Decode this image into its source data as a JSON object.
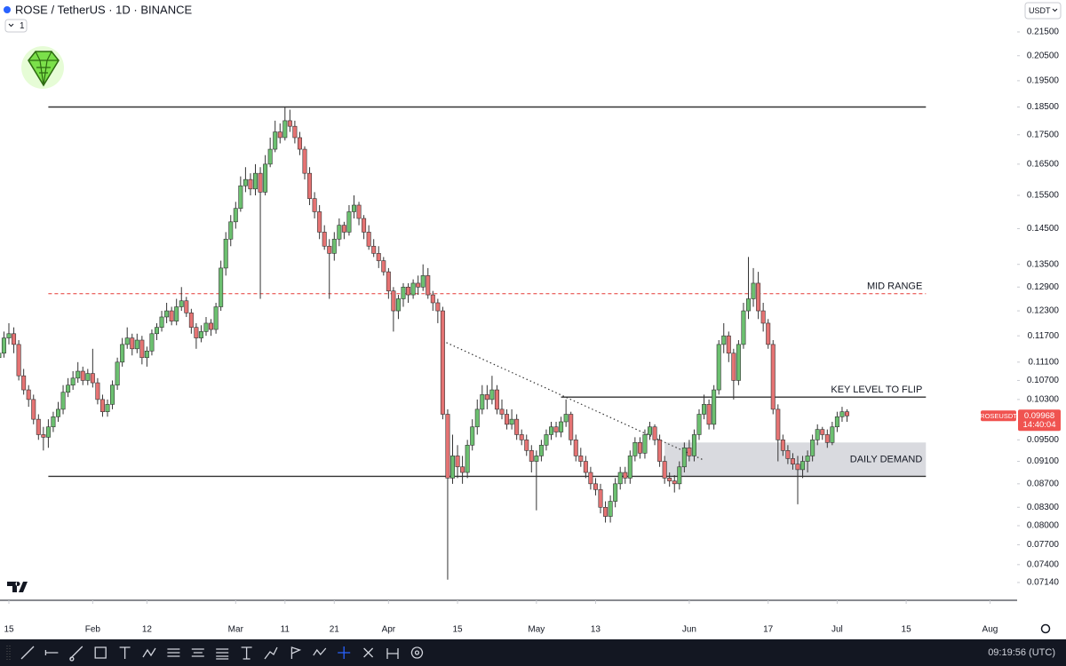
{
  "chart_data": {
    "type": "candlestick",
    "title": "ROSE / TetherUS · 1D · BINANCE",
    "interval_count": "1",
    "currency": "USDT",
    "symbol": "ROSEUSDT",
    "countdown": "14:40:04",
    "clock": "09:19:56 (UTC)",
    "log_scale": true,
    "grid": false,
    "up_color": "#6cc070",
    "down_color": "#e57373",
    "wick_color": "#333333",
    "ylim": [
      0.0689,
      0.2292
    ],
    "yticks": [
      {
        "value": 0.215,
        "label": "0.21500"
      },
      {
        "value": 0.205,
        "label": "0.20500"
      },
      {
        "value": 0.195,
        "label": "0.19500"
      },
      {
        "value": 0.185,
        "label": "0.18500"
      },
      {
        "value": 0.175,
        "label": "0.17500"
      },
      {
        "value": 0.165,
        "label": "0.16500"
      },
      {
        "value": 0.155,
        "label": "0.15500"
      },
      {
        "value": 0.145,
        "label": "0.14500"
      },
      {
        "value": 0.135,
        "label": "0.13500"
      },
      {
        "value": 0.129,
        "label": "0.12900"
      },
      {
        "value": 0.123,
        "label": "0.12300"
      },
      {
        "value": 0.117,
        "label": "0.11700"
      },
      {
        "value": 0.111,
        "label": "0.11100"
      },
      {
        "value": 0.107,
        "label": "0.10700"
      },
      {
        "value": 0.103,
        "label": "0.10300"
      },
      {
        "value": 0.095,
        "label": "0.09500"
      },
      {
        "value": 0.091,
        "label": "0.09100"
      },
      {
        "value": 0.087,
        "label": "0.08700"
      },
      {
        "value": 0.083,
        "label": "0.08300"
      },
      {
        "value": 0.08,
        "label": "0.08000"
      },
      {
        "value": 0.077,
        "label": "0.07700"
      },
      {
        "value": 0.074,
        "label": "0.07400"
      },
      {
        "value": 0.0714,
        "label": "0.07140"
      }
    ],
    "xticks": [
      {
        "value": "01-15",
        "label": "15"
      },
      {
        "value": "02-01",
        "label": "Feb"
      },
      {
        "value": "02-12",
        "label": "12"
      },
      {
        "value": "03-01",
        "label": "Mar"
      },
      {
        "value": "03-11",
        "label": "11"
      },
      {
        "value": "03-21",
        "label": "21"
      },
      {
        "value": "04-01",
        "label": "Apr"
      },
      {
        "value": "04-15",
        "label": "15"
      },
      {
        "value": "05-01",
        "label": "May"
      },
      {
        "value": "05-13",
        "label": "13"
      },
      {
        "value": "06-01",
        "label": "Jun"
      },
      {
        "value": "06-17",
        "label": "17"
      },
      {
        "value": "07-01",
        "label": "Jul"
      },
      {
        "value": "07-15",
        "label": "15"
      },
      {
        "value": "08-01",
        "label": "Aug"
      }
    ],
    "levels": [
      {
        "value": 0.185,
        "from": "01-23",
        "to": "07-19",
        "color": "#333333"
      },
      {
        "value": 0.1273,
        "from": "01-23",
        "to": "07-19",
        "color": "#e53935",
        "dashed": true,
        "label": "MID RANGE"
      },
      {
        "value": 0.1035,
        "from": "05-06",
        "to": "07-19",
        "color": "#333333",
        "label": "KEY LEVEL TO FLIP"
      },
      {
        "value": 0.0883,
        "from": "01-23",
        "to": "07-19",
        "color": "#333333"
      }
    ],
    "zone": {
      "label": "DAILY DEMAND",
      "low": 0.0883,
      "high": 0.0945,
      "from": "05-27",
      "to": "07-19",
      "color": "#d9dadf"
    },
    "trendline": {
      "from": "04-12",
      "from_value": 0.1158,
      "to": "06-04",
      "to_value": 0.0912
    },
    "x": [
      "01-13",
      "01-14",
      "01-15",
      "01-16",
      "01-17",
      "01-18",
      "01-19",
      "01-20",
      "01-21",
      "01-22",
      "01-23",
      "01-24",
      "01-25",
      "01-26",
      "01-27",
      "01-28",
      "01-29",
      "01-30",
      "01-31",
      "02-01",
      "02-02",
      "02-03",
      "02-04",
      "02-05",
      "02-06",
      "02-07",
      "02-08",
      "02-09",
      "02-10",
      "02-11",
      "02-12",
      "02-13",
      "02-14",
      "02-15",
      "02-16",
      "02-17",
      "02-18",
      "02-19",
      "02-20",
      "02-21",
      "02-22",
      "02-23",
      "02-24",
      "02-25",
      "02-26",
      "02-27",
      "02-28",
      "02-29",
      "03-01",
      "03-02",
      "03-03",
      "03-04",
      "03-05",
      "03-06",
      "03-07",
      "03-08",
      "03-09",
      "03-10",
      "03-11",
      "03-12",
      "03-13",
      "03-14",
      "03-15",
      "03-16",
      "03-17",
      "03-18",
      "03-19",
      "03-20",
      "03-21",
      "03-22",
      "03-23",
      "03-24",
      "03-25",
      "03-26",
      "03-27",
      "03-28",
      "03-29",
      "03-30",
      "03-31",
      "04-01",
      "04-02",
      "04-03",
      "04-04",
      "04-05",
      "04-06",
      "04-07",
      "04-08",
      "04-09",
      "04-10",
      "04-11",
      "04-12",
      "04-13",
      "04-14",
      "04-15",
      "04-16",
      "04-17",
      "04-18",
      "04-19",
      "04-20",
      "04-21",
      "04-22",
      "04-23",
      "04-24",
      "04-25",
      "04-26",
      "04-27",
      "04-28",
      "04-29",
      "04-30",
      "05-01",
      "05-02",
      "05-03",
      "05-04",
      "05-05",
      "05-06",
      "05-07",
      "05-08",
      "05-09",
      "05-10",
      "05-11",
      "05-12",
      "05-13",
      "05-14",
      "05-15",
      "05-16",
      "05-17",
      "05-18",
      "05-19",
      "05-20",
      "05-21",
      "05-22",
      "05-23",
      "05-24",
      "05-25",
      "05-26",
      "05-27",
      "05-28",
      "05-29",
      "05-30",
      "05-31",
      "06-01",
      "06-02",
      "06-03",
      "06-04",
      "06-05",
      "06-06",
      "06-07",
      "06-08",
      "06-09",
      "06-10",
      "06-11",
      "06-12",
      "06-13",
      "06-14",
      "06-15",
      "06-16",
      "06-17",
      "06-18",
      "06-19",
      "06-20",
      "06-21",
      "06-22",
      "06-23",
      "06-24",
      "06-25",
      "06-26",
      "06-27",
      "06-28",
      "06-29",
      "06-30",
      "07-01",
      "07-02",
      "07-03"
    ],
    "ohlc": [
      [
        0.112,
        0.115,
        0.11,
        0.113
      ],
      [
        0.113,
        0.118,
        0.112,
        0.1165
      ],
      [
        0.1165,
        0.12,
        0.115,
        0.1175
      ],
      [
        0.1175,
        0.119,
        0.113,
        0.115
      ],
      [
        0.115,
        0.116,
        0.107,
        0.108
      ],
      [
        0.108,
        0.1095,
        0.104,
        0.105
      ],
      [
        0.105,
        0.106,
        0.1015,
        0.103
      ],
      [
        0.103,
        0.104,
        0.098,
        0.099
      ],
      [
        0.099,
        0.1,
        0.095,
        0.096
      ],
      [
        0.096,
        0.0975,
        0.093,
        0.0955
      ],
      [
        0.0955,
        0.099,
        0.0935,
        0.0975
      ],
      [
        0.0975,
        0.1005,
        0.0965,
        0.0995
      ],
      [
        0.0995,
        0.1025,
        0.0985,
        0.101
      ],
      [
        0.101,
        0.106,
        0.1,
        0.1045
      ],
      [
        0.1045,
        0.1075,
        0.1035,
        0.106
      ],
      [
        0.106,
        0.109,
        0.105,
        0.1075
      ],
      [
        0.1075,
        0.111,
        0.1065,
        0.109
      ],
      [
        0.109,
        0.11,
        0.106,
        0.107
      ],
      [
        0.107,
        0.1095,
        0.106,
        0.1085
      ],
      [
        0.1085,
        0.114,
        0.1055,
        0.1065
      ],
      [
        0.1065,
        0.1075,
        0.102,
        0.103
      ],
      [
        0.103,
        0.104,
        0.0995,
        0.1005
      ],
      [
        0.1005,
        0.103,
        0.0995,
        0.102
      ],
      [
        0.102,
        0.107,
        0.101,
        0.106
      ],
      [
        0.106,
        0.112,
        0.105,
        0.111
      ],
      [
        0.111,
        0.1165,
        0.11,
        0.115
      ],
      [
        0.115,
        0.119,
        0.114,
        0.1165
      ],
      [
        0.1165,
        0.1175,
        0.1125,
        0.114
      ],
      [
        0.114,
        0.1175,
        0.113,
        0.116
      ],
      [
        0.116,
        0.117,
        0.1105,
        0.112
      ],
      [
        0.112,
        0.1145,
        0.11,
        0.1135
      ],
      [
        0.1135,
        0.1185,
        0.1125,
        0.1175
      ],
      [
        0.1175,
        0.12,
        0.116,
        0.119
      ],
      [
        0.119,
        0.123,
        0.118,
        0.1215
      ],
      [
        0.1215,
        0.125,
        0.12,
        0.123
      ],
      [
        0.123,
        0.124,
        0.1195,
        0.1205
      ],
      [
        0.1205,
        0.126,
        0.1195,
        0.124
      ],
      [
        0.124,
        0.129,
        0.123,
        0.1255
      ],
      [
        0.1255,
        0.1265,
        0.1215,
        0.1225
      ],
      [
        0.1225,
        0.1235,
        0.1175,
        0.119
      ],
      [
        0.119,
        0.12,
        0.114,
        0.1165
      ],
      [
        0.1165,
        0.1195,
        0.1155,
        0.118
      ],
      [
        0.118,
        0.1215,
        0.117,
        0.12
      ],
      [
        0.12,
        0.121,
        0.117,
        0.1185
      ],
      [
        0.1185,
        0.125,
        0.1175,
        0.124
      ],
      [
        0.124,
        0.136,
        0.123,
        0.134
      ],
      [
        0.134,
        0.144,
        0.132,
        0.142
      ],
      [
        0.142,
        0.149,
        0.14,
        0.147
      ],
      [
        0.147,
        0.153,
        0.145,
        0.151
      ],
      [
        0.151,
        0.161,
        0.15,
        0.158
      ],
      [
        0.158,
        0.164,
        0.156,
        0.16
      ],
      [
        0.16,
        0.162,
        0.155,
        0.157
      ],
      [
        0.157,
        0.165,
        0.155,
        0.162
      ],
      [
        0.162,
        0.164,
        0.126,
        0.156
      ],
      [
        0.156,
        0.168,
        0.155,
        0.165
      ],
      [
        0.165,
        0.174,
        0.164,
        0.17
      ],
      [
        0.17,
        0.18,
        0.169,
        0.176
      ],
      [
        0.176,
        0.179,
        0.172,
        0.174
      ],
      [
        0.174,
        0.185,
        0.173,
        0.18
      ],
      [
        0.18,
        0.184,
        0.176,
        0.178
      ],
      [
        0.178,
        0.18,
        0.172,
        0.174
      ],
      [
        0.174,
        0.176,
        0.168,
        0.17
      ],
      [
        0.17,
        0.171,
        0.16,
        0.162
      ],
      [
        0.162,
        0.164,
        0.152,
        0.154
      ],
      [
        0.154,
        0.156,
        0.148,
        0.15
      ],
      [
        0.15,
        0.152,
        0.142,
        0.144
      ],
      [
        0.144,
        0.146,
        0.139,
        0.14
      ],
      [
        0.14,
        0.142,
        0.126,
        0.138
      ],
      [
        0.138,
        0.144,
        0.136,
        0.142
      ],
      [
        0.142,
        0.148,
        0.14,
        0.146
      ],
      [
        0.146,
        0.147,
        0.142,
        0.144
      ],
      [
        0.144,
        0.152,
        0.143,
        0.15
      ],
      [
        0.15,
        0.155,
        0.148,
        0.152
      ],
      [
        0.152,
        0.153,
        0.146,
        0.148
      ],
      [
        0.148,
        0.149,
        0.142,
        0.144
      ],
      [
        0.144,
        0.146,
        0.139,
        0.14
      ],
      [
        0.14,
        0.142,
        0.137,
        0.138
      ],
      [
        0.138,
        0.14,
        0.134,
        0.136
      ],
      [
        0.136,
        0.137,
        0.132,
        0.133
      ],
      [
        0.133,
        0.134,
        0.126,
        0.128
      ],
      [
        0.128,
        0.129,
        0.118,
        0.123
      ],
      [
        0.123,
        0.127,
        0.121,
        0.126
      ],
      [
        0.126,
        0.13,
        0.124,
        0.129
      ],
      [
        0.129,
        0.13,
        0.125,
        0.127
      ],
      [
        0.127,
        0.131,
        0.126,
        0.13
      ],
      [
        0.13,
        0.132,
        0.127,
        0.129
      ],
      [
        0.129,
        0.135,
        0.128,
        0.132
      ],
      [
        0.132,
        0.134,
        0.126,
        0.127
      ],
      [
        0.127,
        0.128,
        0.123,
        0.125
      ],
      [
        0.125,
        0.126,
        0.12,
        0.123
      ],
      [
        0.123,
        0.124,
        0.099,
        0.1
      ],
      [
        0.1,
        0.101,
        0.0718,
        0.088
      ],
      [
        0.088,
        0.096,
        0.087,
        0.092
      ],
      [
        0.092,
        0.094,
        0.088,
        0.09
      ],
      [
        0.09,
        0.092,
        0.087,
        0.089
      ],
      [
        0.089,
        0.095,
        0.088,
        0.094
      ],
      [
        0.094,
        0.099,
        0.093,
        0.0975
      ],
      [
        0.0975,
        0.103,
        0.096,
        0.101
      ],
      [
        0.101,
        0.106,
        0.1,
        0.104
      ],
      [
        0.104,
        0.106,
        0.101,
        0.103
      ],
      [
        0.103,
        0.108,
        0.102,
        0.105
      ],
      [
        0.105,
        0.106,
        0.1,
        0.101
      ],
      [
        0.101,
        0.103,
        0.099,
        0.1
      ],
      [
        0.1,
        0.101,
        0.097,
        0.098
      ],
      [
        0.098,
        0.101,
        0.097,
        0.099
      ],
      [
        0.099,
        0.1,
        0.095,
        0.096
      ],
      [
        0.096,
        0.097,
        0.094,
        0.095
      ],
      [
        0.095,
        0.096,
        0.092,
        0.093
      ],
      [
        0.093,
        0.094,
        0.089,
        0.091
      ],
      [
        0.091,
        0.093,
        0.0825,
        0.092
      ],
      [
        0.092,
        0.095,
        0.091,
        0.094
      ],
      [
        0.094,
        0.097,
        0.093,
        0.096
      ],
      [
        0.096,
        0.0985,
        0.095,
        0.0975
      ],
      [
        0.0975,
        0.0985,
        0.0955,
        0.0965
      ],
      [
        0.0965,
        0.0995,
        0.0955,
        0.0985
      ],
      [
        0.0985,
        0.103,
        0.0975,
        0.1
      ],
      [
        0.1,
        0.1005,
        0.094,
        0.095
      ],
      [
        0.095,
        0.096,
        0.091,
        0.092
      ],
      [
        0.092,
        0.0935,
        0.09,
        0.091
      ],
      [
        0.091,
        0.092,
        0.088,
        0.089
      ],
      [
        0.089,
        0.09,
        0.086,
        0.087
      ],
      [
        0.087,
        0.088,
        0.085,
        0.086
      ],
      [
        0.086,
        0.087,
        0.082,
        0.083
      ],
      [
        0.083,
        0.084,
        0.0805,
        0.0815
      ],
      [
        0.0815,
        0.085,
        0.0805,
        0.084
      ],
      [
        0.084,
        0.088,
        0.083,
        0.087
      ],
      [
        0.087,
        0.09,
        0.086,
        0.089
      ],
      [
        0.089,
        0.09,
        0.087,
        0.088
      ],
      [
        0.088,
        0.093,
        0.087,
        0.092
      ],
      [
        0.092,
        0.0955,
        0.091,
        0.0945
      ],
      [
        0.0945,
        0.0955,
        0.0915,
        0.0925
      ],
      [
        0.0925,
        0.097,
        0.0915,
        0.096
      ],
      [
        0.096,
        0.0985,
        0.095,
        0.0975
      ],
      [
        0.0975,
        0.098,
        0.094,
        0.095
      ],
      [
        0.095,
        0.096,
        0.09,
        0.091
      ],
      [
        0.091,
        0.092,
        0.087,
        0.088
      ],
      [
        0.088,
        0.089,
        0.0865,
        0.0875
      ],
      [
        0.0875,
        0.0885,
        0.0855,
        0.087
      ],
      [
        0.087,
        0.091,
        0.086,
        0.09
      ],
      [
        0.09,
        0.0945,
        0.089,
        0.0935
      ],
      [
        0.0935,
        0.095,
        0.091,
        0.092
      ],
      [
        0.092,
        0.097,
        0.091,
        0.096
      ],
      [
        0.096,
        0.101,
        0.095,
        0.1
      ],
      [
        0.1,
        0.104,
        0.099,
        0.102
      ],
      [
        0.102,
        0.103,
        0.097,
        0.098
      ],
      [
        0.098,
        0.106,
        0.097,
        0.105
      ],
      [
        0.105,
        0.116,
        0.104,
        0.115
      ],
      [
        0.115,
        0.12,
        0.113,
        0.117
      ],
      [
        0.117,
        0.118,
        0.111,
        0.113
      ],
      [
        0.113,
        0.114,
        0.103,
        0.107
      ],
      [
        0.107,
        0.116,
        0.106,
        0.115
      ],
      [
        0.115,
        0.125,
        0.114,
        0.123
      ],
      [
        0.123,
        0.137,
        0.121,
        0.126
      ],
      [
        0.126,
        0.134,
        0.124,
        0.13
      ],
      [
        0.13,
        0.133,
        0.121,
        0.123
      ],
      [
        0.123,
        0.125,
        0.118,
        0.12
      ],
      [
        0.12,
        0.121,
        0.114,
        0.115
      ],
      [
        0.115,
        0.116,
        0.1,
        0.101
      ],
      [
        0.101,
        0.102,
        0.091,
        0.095
      ],
      [
        0.095,
        0.096,
        0.092,
        0.093
      ],
      [
        0.093,
        0.094,
        0.0905,
        0.0915
      ],
      [
        0.0915,
        0.0925,
        0.0895,
        0.0905
      ],
      [
        0.0905,
        0.092,
        0.0835,
        0.0895
      ],
      [
        0.0895,
        0.092,
        0.088,
        0.091
      ],
      [
        0.091,
        0.093,
        0.089,
        0.092
      ],
      [
        0.092,
        0.096,
        0.091,
        0.095
      ],
      [
        0.095,
        0.098,
        0.094,
        0.097
      ],
      [
        0.097,
        0.0975,
        0.095,
        0.096
      ],
      [
        0.096,
        0.097,
        0.0935,
        0.0945
      ],
      [
        0.0945,
        0.0985,
        0.094,
        0.0975
      ],
      [
        0.0975,
        0.1005,
        0.0965,
        0.0995
      ],
      [
        0.0995,
        0.1015,
        0.0985,
        0.1005
      ],
      [
        0.1005,
        0.101,
        0.0985,
        0.09968
      ]
    ]
  }
}
